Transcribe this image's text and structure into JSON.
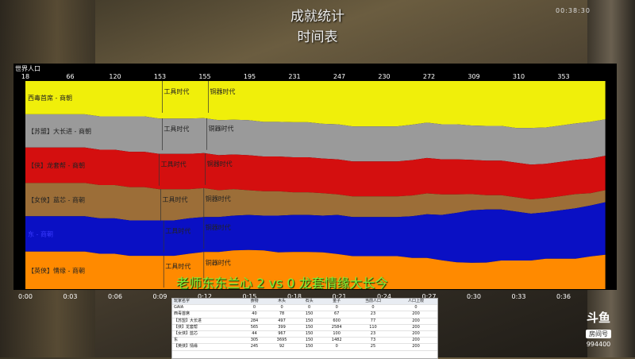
{
  "header": {
    "title": "成就统计",
    "subtitle": "时间表",
    "timer": "00:38:30"
  },
  "panel_label": "世界人口",
  "overlay_text": "老师东东兰心 2  vs 0 龙套情缘大长今",
  "colors": {
    "yellow": "#f0ef0a",
    "gray": "#9a9a9a",
    "red": "#d40f0f",
    "brown": "#9c6e38",
    "blue": "#0a10c4",
    "orange": "#ff8a00"
  },
  "chart_data": {
    "type": "area",
    "title": "世界人口",
    "top_tick_labels": [
      "18",
      "66",
      "120",
      "153",
      "155",
      "195",
      "231",
      "247",
      "230",
      "272",
      "309",
      "310",
      "353"
    ],
    "x_tick_labels": [
      "0:00",
      "0:03",
      "0:06",
      "0:09",
      "0:12",
      "0:15",
      "0:18",
      "0:21",
      "0:24",
      "0:27",
      "0:30",
      "0:33",
      "0:36"
    ],
    "x_minutes": [
      0,
      1,
      2,
      3,
      4,
      5,
      6,
      7,
      8,
      9,
      10,
      11,
      12,
      13,
      14,
      15,
      16,
      17,
      18,
      19,
      20,
      21,
      22,
      23,
      24,
      25,
      26,
      27,
      28,
      29,
      30,
      31,
      32,
      33,
      34,
      35,
      36,
      37,
      38,
      39
    ],
    "series": [
      {
        "name": "西毒首席 - 商朝",
        "color": "#f0ef0a",
        "values": [
          16,
          16,
          16,
          16,
          16,
          17,
          17,
          17,
          17,
          18,
          18,
          18,
          18,
          19,
          19,
          19,
          20,
          20,
          20,
          20,
          21,
          21,
          22,
          22,
          22,
          22,
          21,
          20,
          21,
          21,
          22,
          22,
          22,
          23,
          23,
          23,
          22,
          21,
          20,
          19
        ]
      },
      {
        "name": "【苏盟】大长进 - 商朝",
        "color": "#9a9a9a",
        "values": [
          16,
          16,
          16,
          16,
          16,
          16,
          16,
          17,
          17,
          17,
          17,
          17,
          17,
          17,
          17,
          17,
          17,
          17,
          17,
          17,
          17,
          17,
          17,
          17,
          17,
          17,
          17,
          17,
          17,
          17,
          17,
          17,
          17,
          17,
          18,
          18,
          18,
          18,
          18,
          18
        ]
      },
      {
        "name": "【侠】龙套帮 - 商朝",
        "color": "#d40f0f",
        "values": [
          17,
          17,
          17,
          17,
          17,
          17,
          17,
          17,
          17,
          17,
          17,
          17,
          17,
          17,
          17,
          17,
          17,
          17,
          17,
          17,
          17,
          17,
          17,
          17,
          17,
          17,
          17,
          17,
          17,
          17,
          17,
          17,
          17,
          17,
          17,
          17,
          17,
          17,
          17,
          17
        ]
      },
      {
        "name": "【女侠】蓝芯 - 商朝",
        "color": "#9c6e38",
        "values": [
          16,
          16,
          16,
          16,
          16,
          16,
          16,
          16,
          16,
          15,
          15,
          14,
          14,
          13,
          13,
          12,
          12,
          12,
          11,
          11,
          11,
          10,
          10,
          10,
          10,
          10,
          10,
          10,
          10,
          9,
          8,
          7,
          7,
          7,
          7,
          7,
          7,
          7,
          6,
          6
        ]
      },
      {
        "name": "东 - 商朝",
        "color": "#0a10c4",
        "values": [
          17,
          17,
          17,
          17,
          17,
          17,
          17,
          17,
          17,
          17,
          17,
          17,
          17,
          17,
          17,
          17,
          17,
          18,
          18,
          18,
          18,
          19,
          19,
          19,
          19,
          19,
          20,
          21,
          22,
          24,
          26,
          26,
          25,
          24,
          23,
          23,
          24,
          25,
          25,
          26
        ]
      },
      {
        "name": "【英侠】情缘 - 商朝",
        "color": "#ff8a00",
        "values": [
          18,
          18,
          18,
          18,
          18,
          17,
          17,
          16,
          16,
          16,
          16,
          17,
          18,
          18,
          19,
          19,
          19,
          18,
          18,
          18,
          18,
          17,
          16,
          16,
          16,
          16,
          15,
          15,
          14,
          13,
          13,
          13,
          14,
          14,
          14,
          15,
          15,
          15,
          16,
          17
        ]
      }
    ],
    "annotations": [
      {
        "label": "工具时代",
        "series": 0,
        "minute": 9.2
      },
      {
        "label": "铜器时代",
        "series": 0,
        "minute": 12.3
      },
      {
        "label": "工具时代",
        "series": 1,
        "minute": 9.2
      },
      {
        "label": "铜器时代",
        "series": 1,
        "minute": 12.2
      },
      {
        "label": "工具时代",
        "series": 2,
        "minute": 9.0
      },
      {
        "label": "铜器时代",
        "series": 2,
        "minute": 12.1
      },
      {
        "label": "工具时代",
        "series": 3,
        "minute": 9.1
      },
      {
        "label": "铜器时代",
        "series": 3,
        "minute": 12.0
      },
      {
        "label": "工具时代",
        "series": 4,
        "minute": 9.3
      },
      {
        "label": "铜器时代",
        "series": 4,
        "minute": 12.0
      },
      {
        "label": "工具时代",
        "series": 5,
        "minute": 9.3
      },
      {
        "label": "铜器时代",
        "series": 5,
        "minute": 12.0
      }
    ],
    "xlim": [
      0,
      39.5
    ],
    "ylim": [
      0,
      100
    ],
    "grid": false,
    "legend": "inside-left"
  },
  "stats": {
    "headers": [
      "玩家名字",
      "食物",
      "木头",
      "石头",
      "金子",
      "当前人口",
      "人口上限"
    ],
    "rows": [
      [
        "GAIA",
        "0",
        "0",
        "0",
        "0",
        "0",
        "0"
      ],
      [
        "西毒首席",
        "40",
        "78",
        "150",
        "67",
        "23",
        "200"
      ],
      [
        "【苏盟】大长进",
        "284",
        "497",
        "150",
        "600",
        "77",
        "200"
      ],
      [
        "【侠】龙套帮",
        "565",
        "399",
        "150",
        "2584",
        "110",
        "200"
      ],
      [
        "【女侠】蓝芯",
        "44",
        "967",
        "150",
        "100",
        "23",
        "200"
      ],
      [
        "东",
        "305",
        "3695",
        "150",
        "1482",
        "73",
        "200"
      ],
      [
        "【英侠】情缘",
        "245",
        "92",
        "150",
        "0",
        "25",
        "200"
      ]
    ]
  },
  "logo": {
    "brand": "斗鱼",
    "room_label": "房间号",
    "room_id": "994400"
  }
}
